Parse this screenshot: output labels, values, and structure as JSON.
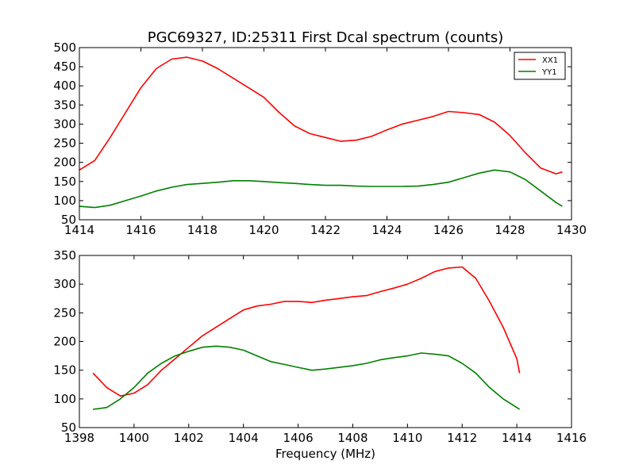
{
  "figure": {
    "title": "PGC69327, ID:25311 First Dcal spectrum (counts)",
    "xlabel": "Frequency (MHz)"
  },
  "colors": {
    "xx1": "#ff0000",
    "yy1": "#008000"
  },
  "chart_data": [
    {
      "type": "line",
      "title": "PGC69327, ID:25311 First Dcal spectrum (counts)",
      "xlabel": "",
      "ylabel": "",
      "xlim": [
        1414,
        1430
      ],
      "ylim": [
        50,
        500
      ],
      "xticks": [
        1414,
        1416,
        1418,
        1420,
        1422,
        1424,
        1426,
        1428,
        1430
      ],
      "yticks": [
        50,
        100,
        150,
        200,
        250,
        300,
        350,
        400,
        450,
        500
      ],
      "grid": false,
      "legend": {
        "placement": "top-right",
        "entries": [
          "XX1",
          "YY1"
        ]
      },
      "series": [
        {
          "name": "XX1",
          "color": "#ff0000",
          "x": [
            1414.0,
            1414.5,
            1415.0,
            1415.5,
            1416.0,
            1416.5,
            1417.0,
            1417.5,
            1418.0,
            1418.5,
            1419.0,
            1419.5,
            1420.0,
            1420.5,
            1421.0,
            1421.5,
            1422.0,
            1422.5,
            1423.0,
            1423.5,
            1424.0,
            1424.5,
            1425.0,
            1425.5,
            1426.0,
            1426.5,
            1427.0,
            1427.5,
            1428.0,
            1428.5,
            1429.0,
            1429.5,
            1429.7
          ],
          "y": [
            180,
            205,
            265,
            330,
            395,
            445,
            470,
            475,
            465,
            445,
            420,
            395,
            370,
            330,
            295,
            275,
            265,
            255,
            258,
            268,
            285,
            300,
            310,
            320,
            333,
            330,
            325,
            305,
            270,
            225,
            185,
            170,
            175
          ]
        },
        {
          "name": "YY1",
          "color": "#008000",
          "x": [
            1414.0,
            1414.5,
            1415.0,
            1415.5,
            1416.0,
            1416.5,
            1417.0,
            1417.5,
            1418.0,
            1418.5,
            1419.0,
            1419.5,
            1420.0,
            1420.5,
            1421.0,
            1421.5,
            1422.0,
            1422.5,
            1423.0,
            1423.5,
            1424.0,
            1424.5,
            1425.0,
            1425.5,
            1426.0,
            1426.5,
            1427.0,
            1427.5,
            1428.0,
            1428.5,
            1429.0,
            1429.5,
            1429.7
          ],
          "y": [
            85,
            82,
            88,
            100,
            112,
            125,
            135,
            142,
            145,
            148,
            152,
            152,
            150,
            147,
            145,
            142,
            140,
            140,
            138,
            137,
            137,
            137,
            138,
            142,
            148,
            160,
            172,
            180,
            175,
            155,
            125,
            95,
            85
          ]
        }
      ]
    },
    {
      "type": "line",
      "title": "",
      "xlabel": "Frequency (MHz)",
      "ylabel": "",
      "xlim": [
        1398,
        1416
      ],
      "ylim": [
        50,
        350
      ],
      "xticks": [
        1398,
        1400,
        1402,
        1404,
        1406,
        1408,
        1410,
        1412,
        1414,
        1416
      ],
      "yticks": [
        50,
        100,
        150,
        200,
        250,
        300,
        350
      ],
      "grid": false,
      "series": [
        {
          "name": "XX1",
          "color": "#ff0000",
          "x": [
            1398.5,
            1399.0,
            1399.5,
            1400.0,
            1400.5,
            1401.0,
            1401.5,
            1402.0,
            1402.5,
            1403.0,
            1403.5,
            1404.0,
            1404.5,
            1405.0,
            1405.5,
            1406.0,
            1406.5,
            1407.0,
            1407.5,
            1408.0,
            1408.5,
            1409.0,
            1409.5,
            1410.0,
            1410.5,
            1411.0,
            1411.5,
            1412.0,
            1412.5,
            1413.0,
            1413.5,
            1414.0,
            1414.1
          ],
          "y": [
            145,
            120,
            105,
            110,
            125,
            150,
            170,
            190,
            210,
            225,
            240,
            255,
            262,
            265,
            270,
            270,
            268,
            272,
            275,
            278,
            280,
            287,
            293,
            300,
            310,
            322,
            328,
            330,
            310,
            270,
            225,
            170,
            145
          ]
        },
        {
          "name": "YY1",
          "color": "#008000",
          "x": [
            1398.5,
            1399.0,
            1399.5,
            1400.0,
            1400.5,
            1401.0,
            1401.5,
            1402.0,
            1402.5,
            1403.0,
            1403.5,
            1404.0,
            1404.5,
            1405.0,
            1405.5,
            1406.0,
            1406.5,
            1407.0,
            1407.5,
            1408.0,
            1408.5,
            1409.0,
            1409.5,
            1410.0,
            1410.5,
            1411.0,
            1411.5,
            1412.0,
            1412.5,
            1413.0,
            1413.5,
            1414.0,
            1414.1
          ],
          "y": [
            82,
            85,
            100,
            120,
            145,
            162,
            175,
            183,
            190,
            192,
            190,
            185,
            175,
            165,
            160,
            155,
            150,
            152,
            155,
            158,
            162,
            168,
            172,
            175,
            180,
            178,
            175,
            162,
            145,
            120,
            100,
            85,
            82
          ]
        }
      ]
    }
  ]
}
